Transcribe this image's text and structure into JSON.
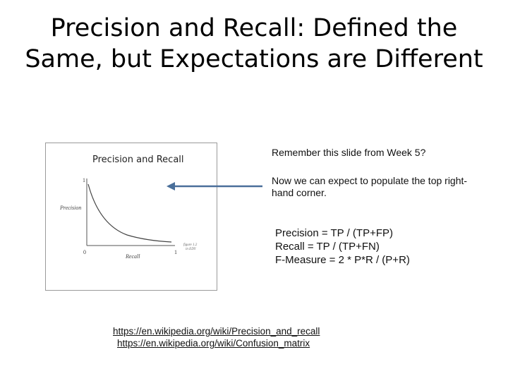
{
  "slide": {
    "title_line1": "Precision and Recall: Defined the",
    "title_line2": "Same, but Expectations are Different"
  },
  "figure": {
    "title": "Precision and Recall",
    "y_label": "Precision",
    "x_label": "Recall",
    "y_top_tick": "1",
    "origin_tick": "0",
    "x_right_tick": "1",
    "caption_line1": "figure 1.2",
    "caption_line2": "in EDY"
  },
  "notes": {
    "remember": "Remember this slide from Week 5?",
    "expect": "Now we can expect to populate the top right-hand corner."
  },
  "formulas": {
    "precision": "Precision = TP / (TP+FP)",
    "recall": "Recall = TP / (TP+FN)",
    "fmeasure": "F-Measure = 2 * P*R / (P+R)"
  },
  "links": {
    "link1": "https://en.wikipedia.org/wiki/Precision_and_recall",
    "link2": "https://en.wikipedia.org/wiki/Confusion_matrix"
  },
  "colors": {
    "arrow": "#4a6f9a"
  }
}
